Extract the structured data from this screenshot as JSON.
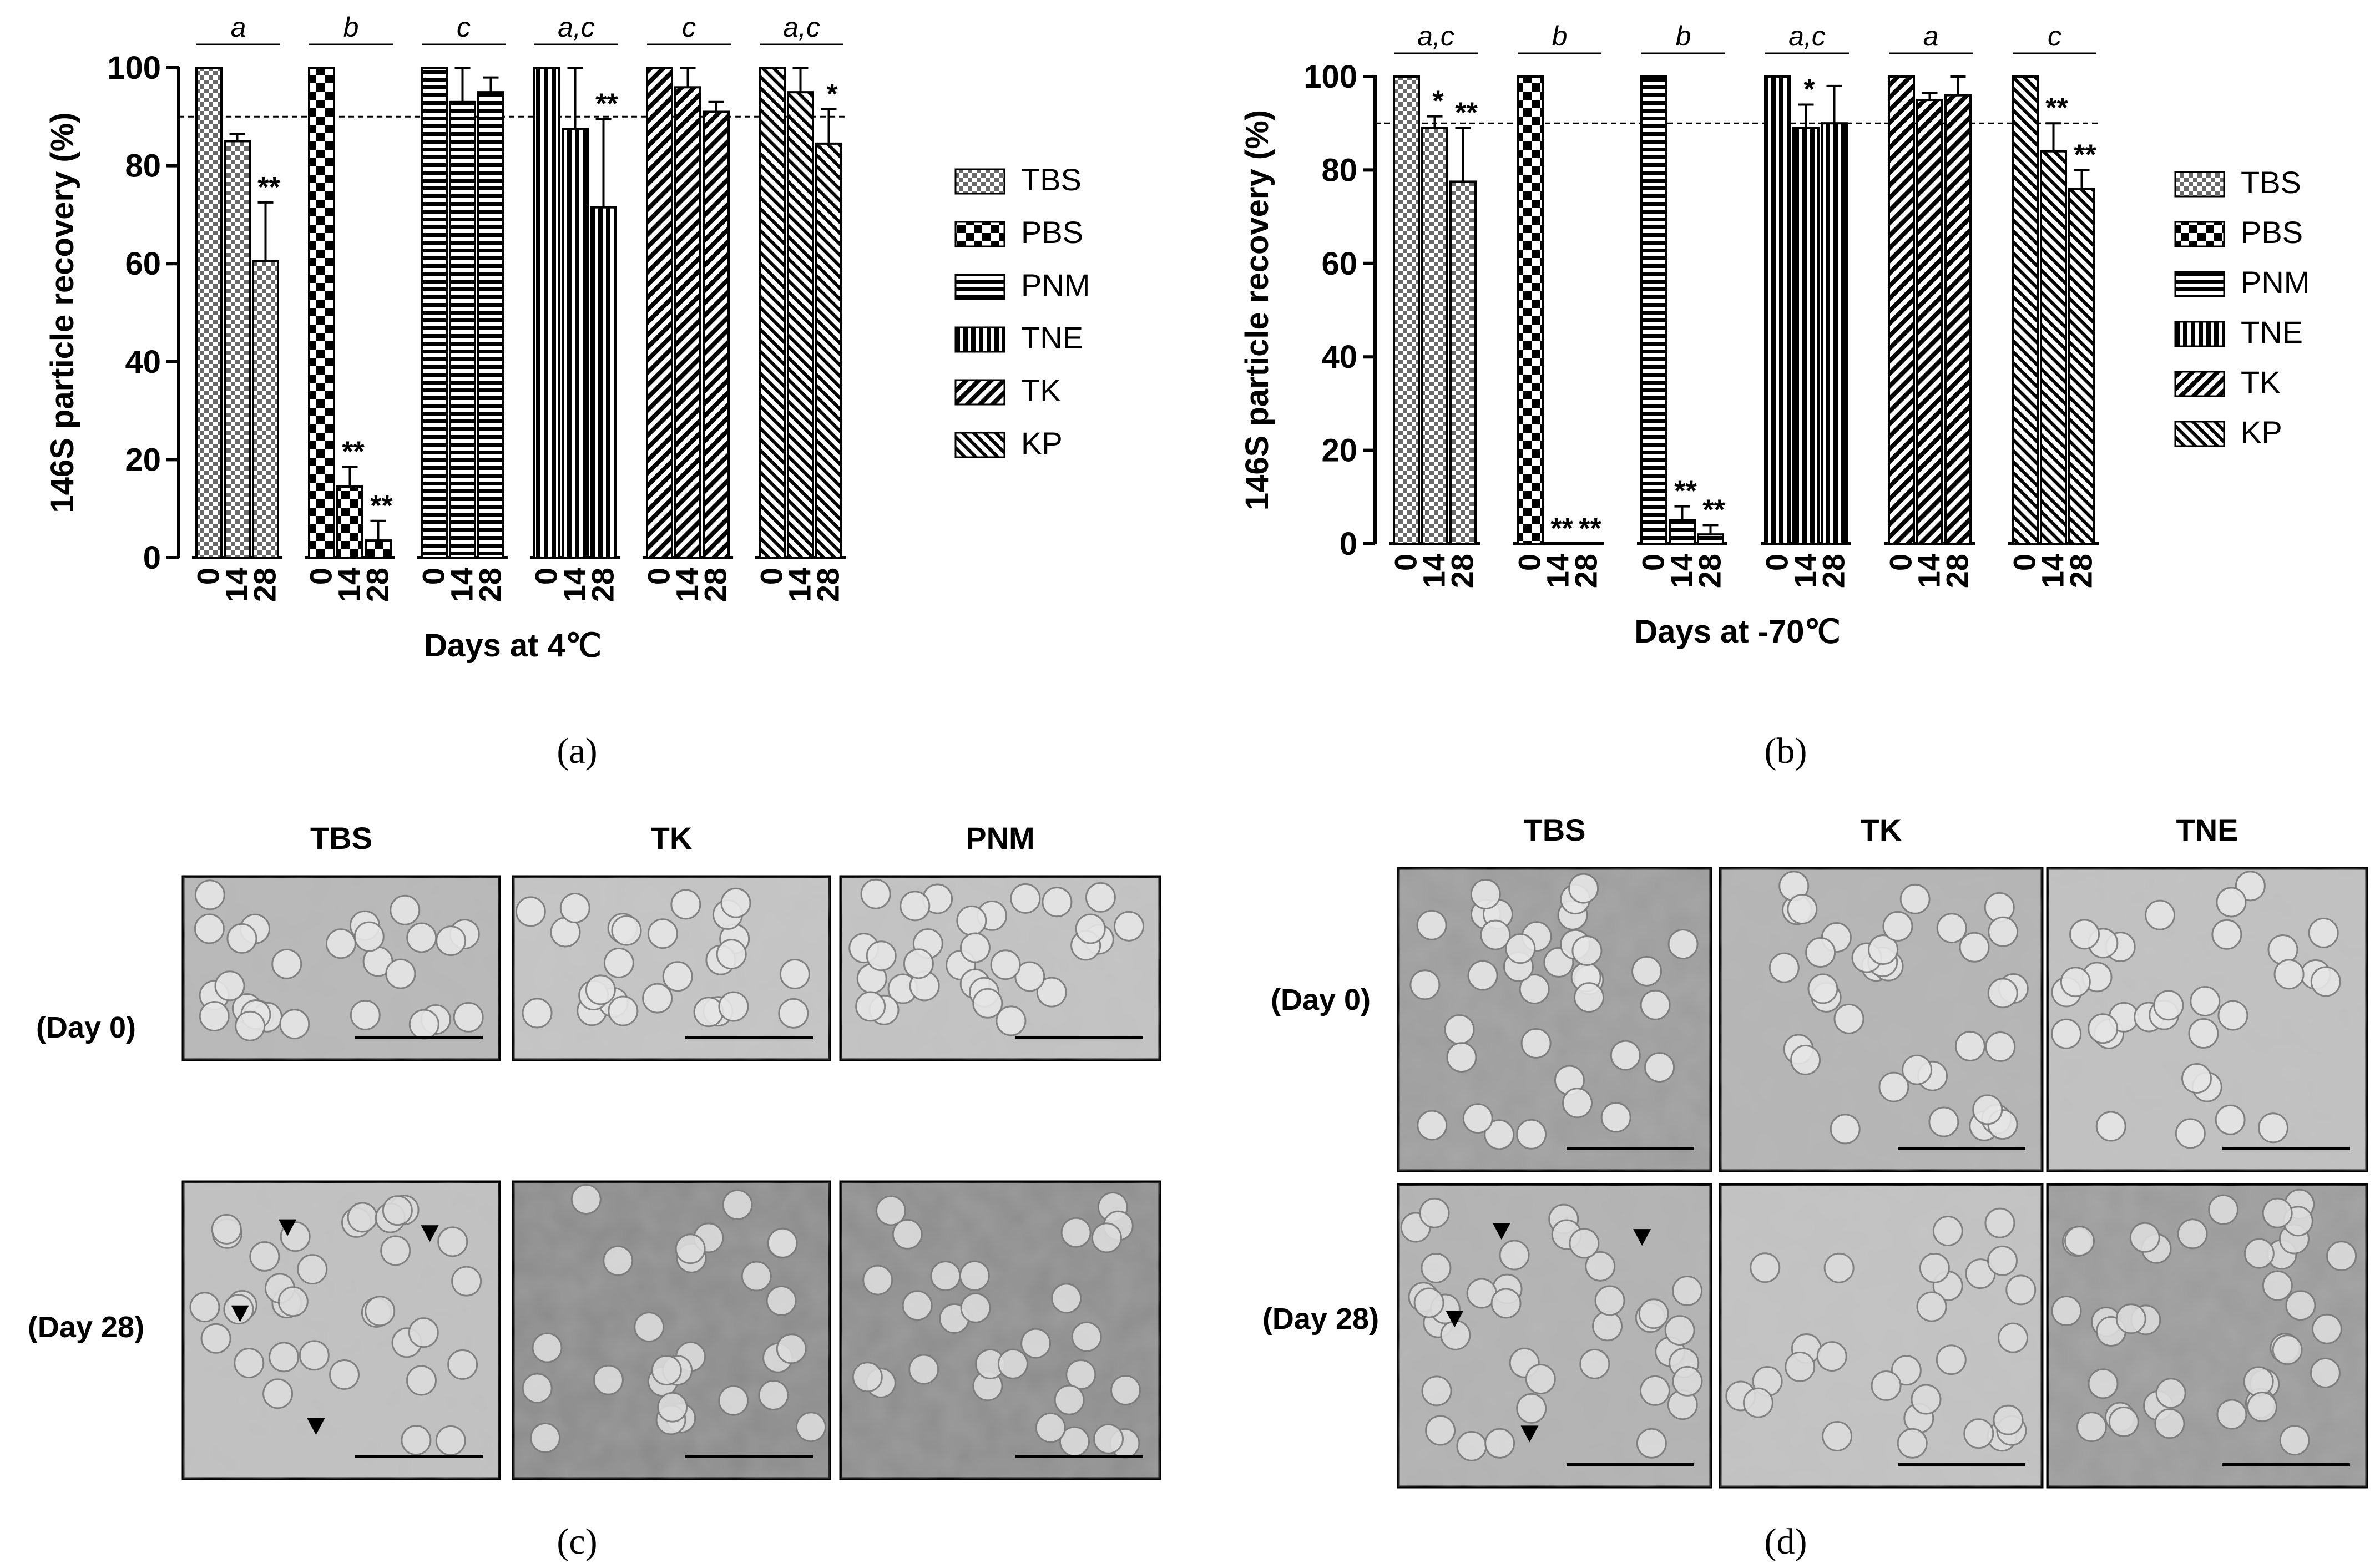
{
  "chart_data": [
    {
      "type": "bar",
      "panel_label": "(a)",
      "ylabel": "146S particle recovery (%)",
      "xlabel": "Days at 4℃",
      "ylim": [
        0,
        100
      ],
      "yticks": [
        "0",
        "20",
        "40",
        "60",
        "80",
        "100"
      ],
      "threshold": 90,
      "day_labels": [
        "0",
        "14",
        "28"
      ],
      "groups": [
        {
          "name": "TBS",
          "letter": "a",
          "values": [
            100,
            85,
            60.5
          ],
          "errors": [
            0,
            1.5,
            12
          ],
          "marks": [
            "",
            "",
            "**"
          ]
        },
        {
          "name": "PBS",
          "letter": "b",
          "values": [
            100,
            14.5,
            3.5
          ],
          "errors": [
            0,
            4,
            4
          ],
          "marks": [
            "",
            "**",
            "**"
          ]
        },
        {
          "name": "PNM",
          "letter": "c",
          "values": [
            100,
            93,
            95
          ],
          "errors": [
            0,
            7,
            3
          ],
          "marks": [
            "",
            "",
            ""
          ]
        },
        {
          "name": "TNE",
          "letter": "a,c",
          "values": [
            100,
            87.5,
            71.5
          ],
          "errors": [
            0,
            12.5,
            18
          ],
          "marks": [
            "",
            "",
            "**"
          ]
        },
        {
          "name": "TK",
          "letter": "c",
          "values": [
            100,
            96,
            91
          ],
          "errors": [
            0,
            4,
            2
          ],
          "marks": [
            "",
            "",
            ""
          ]
        },
        {
          "name": "KP",
          "letter": "a,c",
          "values": [
            100,
            95,
            84.5
          ],
          "errors": [
            0,
            5,
            7
          ],
          "marks": [
            "",
            "",
            "*"
          ]
        }
      ],
      "legend": [
        "TBS",
        "PBS",
        "PNM",
        "TNE",
        "TK",
        "KP"
      ]
    },
    {
      "type": "bar",
      "panel_label": "(b)",
      "ylabel": "146S particle recovery (%)",
      "xlabel": "Days at -70℃",
      "ylim": [
        0,
        100
      ],
      "yticks": [
        "0",
        "20",
        "40",
        "60",
        "80",
        "100"
      ],
      "threshold": 90,
      "day_labels": [
        "0",
        "14",
        "28"
      ],
      "groups": [
        {
          "name": "TBS",
          "letter": "a,c",
          "values": [
            100,
            89,
            77.5
          ],
          "errors": [
            0,
            2.5,
            11.5
          ],
          "marks": [
            "",
            "*",
            "**"
          ]
        },
        {
          "name": "PBS",
          "letter": "b",
          "values": [
            100,
            0,
            0
          ],
          "errors": [
            0,
            0,
            0
          ],
          "marks": [
            "",
            "**",
            "**"
          ]
        },
        {
          "name": "PNM",
          "letter": "b",
          "values": [
            100,
            5,
            2
          ],
          "errors": [
            0,
            3,
            2
          ],
          "marks": [
            "",
            "**",
            "**"
          ]
        },
        {
          "name": "TNE",
          "letter": "a,c",
          "values": [
            100,
            89,
            90
          ],
          "errors": [
            0,
            5,
            8
          ],
          "marks": [
            "",
            "*",
            ""
          ]
        },
        {
          "name": "TK",
          "letter": "a",
          "values": [
            100,
            95,
            96
          ],
          "errors": [
            0,
            1.5,
            4
          ],
          "marks": [
            "",
            "",
            ""
          ]
        },
        {
          "name": "KP",
          "letter": "c",
          "values": [
            100,
            84,
            76
          ],
          "errors": [
            0,
            6,
            4
          ],
          "marks": [
            "",
            "**",
            "**"
          ]
        }
      ],
      "legend": [
        "TBS",
        "PBS",
        "PNM",
        "TNE",
        "TK",
        "KP"
      ]
    }
  ],
  "micrographs": [
    {
      "panel_label": "(c)",
      "columns": [
        "TBS",
        "TK",
        "PNM"
      ],
      "rows": [
        "(Day 0)",
        "(Day 28)"
      ]
    },
    {
      "panel_label": "(d)",
      "columns": [
        "TBS",
        "TK",
        "TNE"
      ],
      "rows": [
        "(Day 0)",
        "(Day 28)"
      ]
    }
  ]
}
